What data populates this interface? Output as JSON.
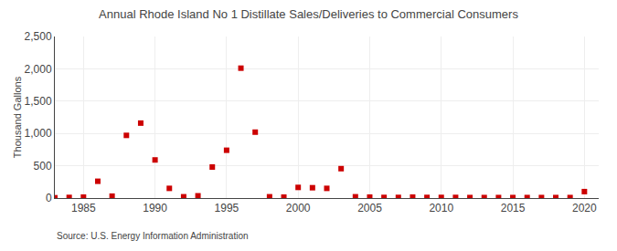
{
  "chart_data": {
    "type": "scatter",
    "title": "Annual Rhode Island No 1 Distillate Sales/Deliveries to Commercial Consumers",
    "ylabel": "Thousand Gallons",
    "annotations": [
      "Source: U.S. Energy Information Administration"
    ],
    "x": [
      1983,
      1984,
      1985,
      1986,
      1987,
      1988,
      1989,
      1990,
      1991,
      1992,
      1993,
      1994,
      1995,
      1996,
      1997,
      1998,
      1999,
      2000,
      2001,
      2002,
      2003,
      2004,
      2005,
      2006,
      2007,
      2008,
      2009,
      2010,
      2011,
      2012,
      2013,
      2014,
      2015,
      2016,
      2017,
      2018,
      2019,
      2020
    ],
    "values": [
      5,
      10,
      15,
      260,
      30,
      970,
      1160,
      590,
      150,
      20,
      35,
      480,
      740,
      2010,
      1020,
      20,
      15,
      165,
      160,
      150,
      455,
      20,
      15,
      10,
      10,
      15,
      10,
      10,
      10,
      8,
      8,
      8,
      8,
      8,
      8,
      8,
      8,
      100
    ],
    "color": "#cc0000",
    "marker": "square",
    "xlim": [
      1983,
      2021
    ],
    "xticks": [
      1985,
      1990,
      1995,
      2000,
      2005,
      2010,
      2015,
      2020
    ],
    "ylim": [
      0,
      2500
    ],
    "yticks": [
      0,
      500,
      {
        "value": 1000,
        "label": "1,000"
      },
      {
        "value": 1500,
        "label": "1,500"
      },
      {
        "value": 2000,
        "label": "2,000"
      },
      {
        "value": 2500,
        "label": "2,500"
      }
    ],
    "grid": true
  }
}
